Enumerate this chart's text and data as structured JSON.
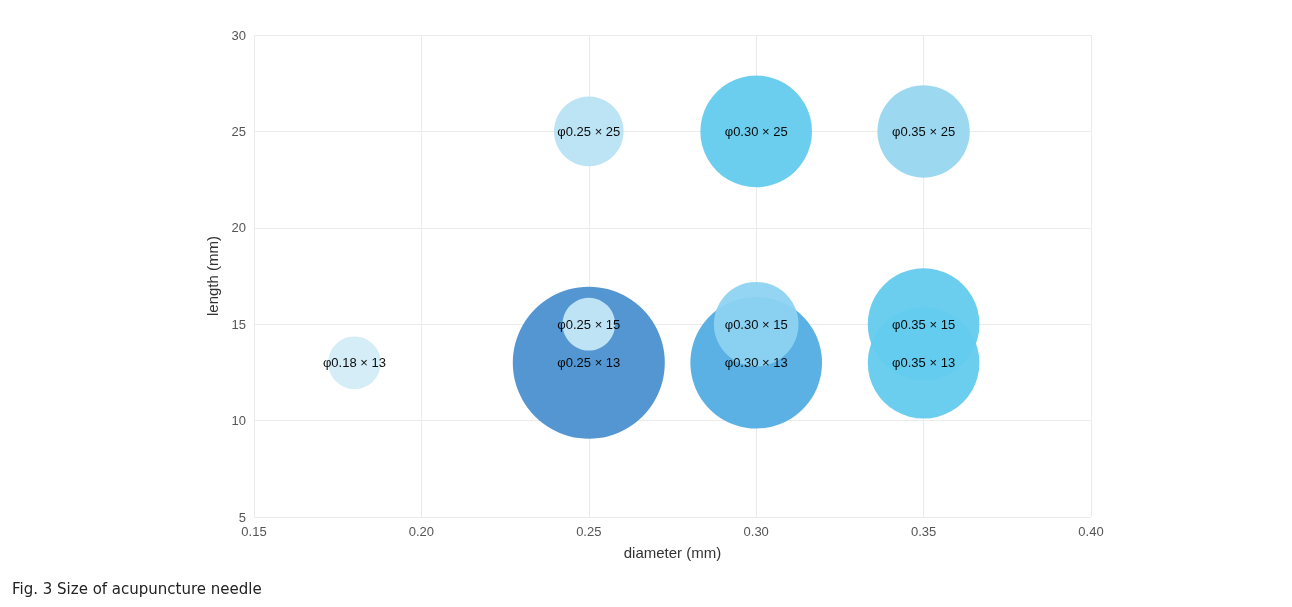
{
  "chart_data": {
    "type": "bubble",
    "xlabel": "diameter (mm)",
    "ylabel": "length (mm)",
    "x": [
      0.18,
      0.25,
      0.25,
      0.25,
      0.3,
      0.3,
      0.3,
      0.35,
      0.35,
      0.35
    ],
    "values": [
      13,
      13,
      15,
      25,
      13,
      15,
      25,
      13,
      15,
      25
    ],
    "sizes": [
      0.12,
      1,
      0.12,
      0.21,
      0.75,
      0.31,
      0.54,
      0.54,
      0.54,
      0.37
    ],
    "colors": [
      "#d3ecf5",
      "#4a90cf",
      "#c4e7f6",
      "#b9e3f4",
      "#52ade2",
      "#8dd3f1",
      "#63cbee",
      "#63cbee",
      "#63cbee",
      "#97d7f0"
    ],
    "value_labels": [
      "φ0.18 × 13",
      "φ0.25 × 13",
      "φ0.25 × 15",
      "φ0.25 × 25",
      "φ0.30 × 13",
      "φ0.30 × 15",
      "φ0.30 × 25",
      "φ0.35 × 13",
      "φ0.35 × 15",
      "φ0.35 × 25"
    ],
    "xlim": [
      0.15,
      0.4
    ],
    "xticks": [
      {
        "value": 0.15,
        "label": "0.15"
      },
      {
        "value": 0.2,
        "label": "0.20"
      },
      {
        "value": 0.25,
        "label": "0.25"
      },
      {
        "value": 0.3,
        "label": "0.30"
      },
      {
        "value": 0.35,
        "label": "0.35"
      },
      {
        "value": 0.4,
        "label": "0.40"
      }
    ],
    "ylim": [
      5,
      30
    ],
    "yticks": [
      5,
      10,
      15,
      20,
      25,
      30
    ],
    "grid": true,
    "annotations": [
      "Fig. 3 Size of acupuncture needle"
    ]
  }
}
